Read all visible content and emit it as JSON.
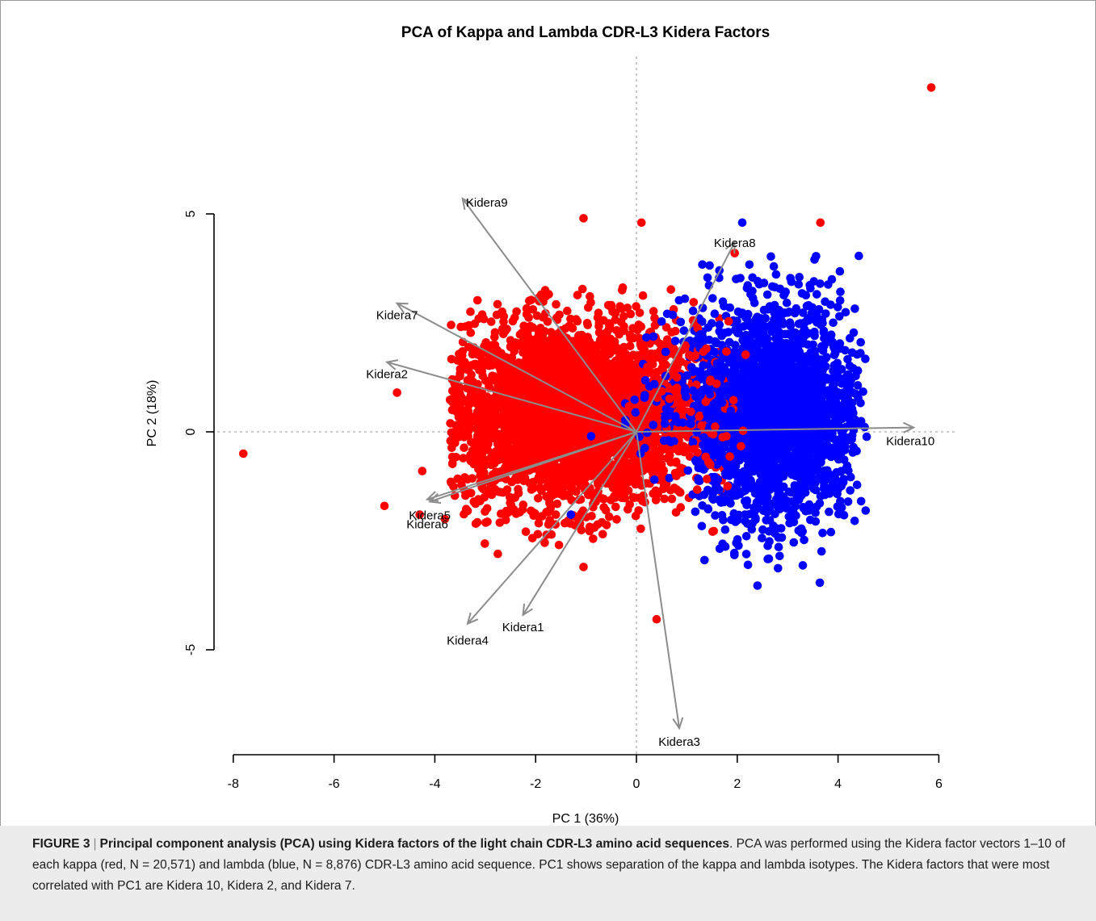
{
  "chart_data": {
    "type": "scatter",
    "title": "PCA of Kappa and Lambda CDR-L3 Kidera Factors",
    "xlabel": "PC 1 (36%)",
    "ylabel": "PC 2 (18%)",
    "xlim": [
      -8,
      6
    ],
    "ylim": [
      -5,
      5
    ],
    "x_ticks": [
      -8,
      -6,
      -4,
      -2,
      0,
      2,
      4,
      6
    ],
    "x_tick_labels": [
      "-8",
      "-6",
      "-4",
      "-2",
      "0",
      "2",
      "4",
      "6"
    ],
    "y_ticks": [
      -5,
      0,
      5
    ],
    "y_tick_labels": [
      "-5",
      "0",
      "5"
    ],
    "reference_lines": {
      "x": 0,
      "y": 0,
      "style": "dotted"
    },
    "series": [
      {
        "name": "kappa",
        "color": "#ff0000",
        "cluster": {
          "center": [
            -1.3,
            0.4
          ],
          "spread": [
            1.25,
            1.05
          ],
          "x_range": [
            -3.7,
            2.0
          ],
          "y_range": [
            -2.6,
            3.4
          ],
          "approx_n": 20571
        },
        "outliers": [
          [
            -7.8,
            -0.5
          ],
          [
            5.85,
            7.9
          ],
          [
            3.65,
            4.8
          ],
          [
            0.4,
            -4.3
          ],
          [
            -4.75,
            0.9
          ],
          [
            -5.0,
            -1.7
          ],
          [
            -4.3,
            -1.9
          ],
          [
            -1.05,
            4.9
          ],
          [
            0.1,
            4.8
          ],
          [
            1.95,
            4.1
          ],
          [
            -1.05,
            -3.1
          ],
          [
            -4.25,
            -0.9
          ],
          [
            -2.75,
            -2.8
          ],
          [
            -3.8,
            -2.0
          ]
        ]
      },
      {
        "name": "lambda",
        "color": "#0000ff",
        "cluster": {
          "center": [
            2.7,
            0.4
          ],
          "spread": [
            0.85,
            1.25
          ],
          "x_range": [
            1.1,
            4.6
          ],
          "y_range": [
            -3.7,
            4.1
          ],
          "approx_n": 8876
        },
        "outliers": [
          [
            2.1,
            4.8
          ],
          [
            -1.3,
            -1.9
          ],
          [
            -0.9,
            -0.1
          ],
          [
            4.1,
            0.05
          ],
          [
            4.2,
            -1.6
          ]
        ]
      }
    ],
    "vectors": [
      {
        "label": "Kidera1",
        "x": -2.25,
        "y": -4.2
      },
      {
        "label": "Kidera2",
        "x": -4.95,
        "y": 1.6
      },
      {
        "label": "Kidera3",
        "x": 0.85,
        "y": -6.8
      },
      {
        "label": "Kidera4",
        "x": -3.35,
        "y": -4.4
      },
      {
        "label": "Kidera5",
        "x": -4.1,
        "y": -1.6
      },
      {
        "label": "Kidera6",
        "x": -4.15,
        "y": -1.55
      },
      {
        "label": "Kidera7",
        "x": -4.75,
        "y": 2.95
      },
      {
        "label": "Kidera8",
        "x": 1.95,
        "y": 4.35
      },
      {
        "label": "Kidera9",
        "x": -3.45,
        "y": 5.35
      },
      {
        "label": "Kidera10",
        "x": 5.5,
        "y": 0.1
      }
    ],
    "vector_color": "#8c8c8c"
  },
  "caption": {
    "label": "FIGURE 3",
    "separator": "|",
    "title": "Principal component analysis (PCA) using Kidera factors of the light chain CDR-L3 amino acid sequences",
    "body": ". PCA was performed using the Kidera factor vectors 1–10 of each kappa (red, N = 20,571) and lambda (blue, N = 8,876) CDR-L3 amino acid sequence. PC1 shows separation of the kappa and lambda isotypes. The Kidera factors that were most correlated with PC1 are Kidera 10, Kidera 2, and Kidera 7."
  }
}
